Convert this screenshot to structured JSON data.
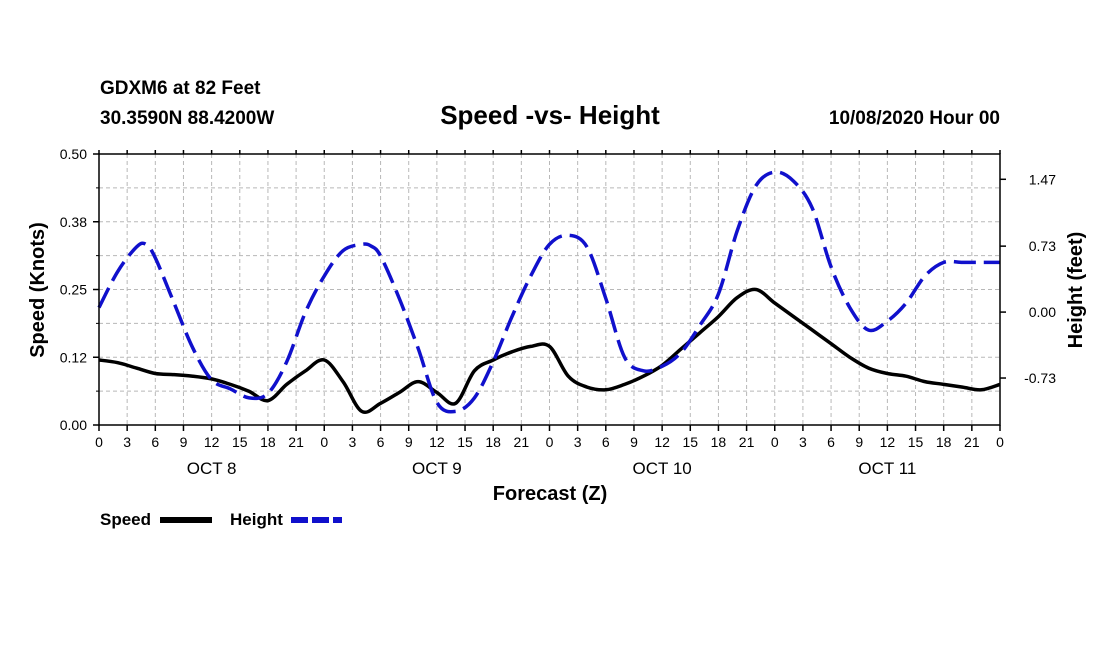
{
  "chart_data": {
    "type": "line",
    "station": "GDXM6 at 82 Feet",
    "coords": "30.3590N 88.4200W",
    "title": "Speed -vs- Height",
    "date_label": "10/08/2020 Hour 00",
    "xlabel": "Forecast (Z)",
    "ylabel_left": "Speed (Knots)",
    "ylabel_right": "Height (feet)",
    "ylim_left": [
      0,
      0.5
    ],
    "ylim_right": [
      -1.25,
      1.75
    ],
    "left_ticks": [
      "0.00",
      "0.12",
      "0.25",
      "0.38",
      "0.50"
    ],
    "left_tick_values": [
      0,
      0.125,
      0.25,
      0.375,
      0.5
    ],
    "right_ticks": [
      "-0.73",
      "0.00",
      "0.73",
      "1.47"
    ],
    "right_tick_values": [
      -0.73,
      0,
      0.73,
      1.47
    ],
    "xlim": [
      0,
      96
    ],
    "x_tick_labels": [
      "0",
      "3",
      "6",
      "9",
      "12",
      "15",
      "18",
      "21",
      "0",
      "3",
      "6",
      "9",
      "12",
      "15",
      "18",
      "21",
      "0",
      "3",
      "6",
      "9",
      "12",
      "15",
      "18",
      "21",
      "0",
      "3",
      "6",
      "9",
      "12",
      "15",
      "18",
      "21",
      "0"
    ],
    "day_labels": [
      "OCT 8",
      "OCT 9",
      "OCT 10",
      "OCT 11"
    ],
    "grid": true,
    "legend_placement": "bottom-left",
    "series": [
      {
        "name": "Speed",
        "axis": "left",
        "color": "#000000",
        "style": "solid",
        "x": [
          0,
          2,
          4,
          6,
          8,
          10,
          12,
          14,
          16,
          18,
          20,
          22,
          24,
          26,
          28,
          30,
          32,
          34,
          36,
          38,
          40,
          42,
          44,
          46,
          48,
          50,
          52,
          54,
          56,
          58,
          60,
          62,
          64,
          66,
          68,
          70,
          72,
          74,
          76,
          78,
          80,
          82,
          84,
          86,
          88,
          90,
          92,
          94,
          96
        ],
        "values": [
          0.12,
          0.115,
          0.105,
          0.095,
          0.093,
          0.09,
          0.085,
          0.075,
          0.062,
          0.045,
          0.075,
          0.1,
          0.12,
          0.08,
          0.025,
          0.04,
          0.06,
          0.08,
          0.06,
          0.04,
          0.1,
          0.12,
          0.135,
          0.145,
          0.145,
          0.09,
          0.07,
          0.065,
          0.075,
          0.09,
          0.11,
          0.14,
          0.17,
          0.2,
          0.235,
          0.25,
          0.225,
          0.2,
          0.175,
          0.15,
          0.125,
          0.105,
          0.095,
          0.09,
          0.08,
          0.075,
          0.07,
          0.065,
          0.075
        ]
      },
      {
        "name": "Height",
        "axis": "right",
        "color": "#1010cc",
        "style": "dashed",
        "x": [
          0,
          2,
          4,
          5,
          6,
          8,
          10,
          12,
          14,
          16,
          18,
          20,
          22,
          24,
          26,
          28,
          29,
          30,
          32,
          34,
          36,
          38,
          40,
          42,
          44,
          46,
          48,
          50,
          52,
          54,
          56,
          58,
          60,
          62,
          64,
          66,
          68,
          70,
          72,
          74,
          76,
          78,
          80,
          82,
          84,
          86,
          88,
          90,
          92,
          94,
          96
        ],
        "values": [
          0.05,
          0.45,
          0.72,
          0.75,
          0.6,
          0.1,
          -0.4,
          -0.75,
          -0.85,
          -0.95,
          -0.9,
          -0.55,
          0.0,
          0.4,
          0.68,
          0.75,
          0.73,
          0.62,
          0.15,
          -0.4,
          -1.0,
          -1.1,
          -0.95,
          -0.55,
          -0.05,
          0.4,
          0.75,
          0.85,
          0.72,
          0.15,
          -0.5,
          -0.65,
          -0.6,
          -0.45,
          -0.15,
          0.2,
          0.9,
          1.4,
          1.55,
          1.45,
          1.15,
          0.5,
          0.05,
          -0.2,
          -0.1,
          0.1,
          0.4,
          0.55,
          0.55,
          0.55,
          0.55
        ]
      }
    ]
  },
  "legend": {
    "speed_label": "Speed",
    "height_label": "Height",
    "speed_color": "#000000",
    "height_color": "#1010cc"
  }
}
